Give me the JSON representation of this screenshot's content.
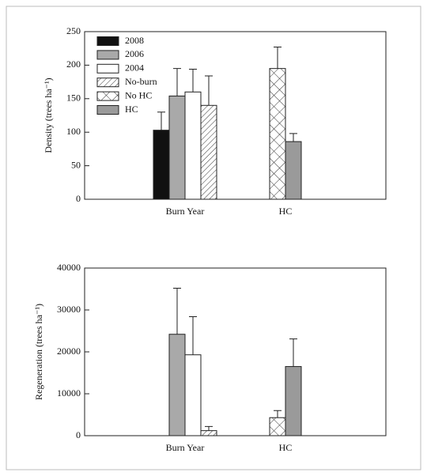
{
  "chart_data": [
    {
      "type": "bar",
      "ylabel": "Density (trees ha⁻¹)",
      "categories": [
        "Burn Year",
        "HC"
      ],
      "ylim": [
        0,
        250
      ],
      "yticks": [
        0,
        50,
        100,
        150,
        200,
        250
      ],
      "legend": "upper left",
      "series": [
        {
          "name": "2008",
          "color": "#111111",
          "values": [
            103,
            null
          ],
          "errors": [
            27,
            null
          ]
        },
        {
          "name": "2006",
          "color": "#a9a9a9",
          "values": [
            154,
            null
          ],
          "errors": [
            41,
            null
          ]
        },
        {
          "name": "2004",
          "color": "#ffffff",
          "values": [
            160,
            null
          ],
          "errors": [
            34,
            null
          ]
        },
        {
          "name": "No-burn",
          "color": "#ffffff",
          "pattern": "diagonal",
          "values": [
            140,
            null
          ],
          "errors": [
            44,
            null
          ]
        },
        {
          "name": "No HC",
          "color": "#ffffff",
          "pattern": "cross",
          "values": [
            null,
            195
          ],
          "errors": [
            null,
            32
          ]
        },
        {
          "name": "HC",
          "color": "#9a9a9a",
          "values": [
            null,
            86
          ],
          "errors": [
            null,
            12
          ]
        }
      ]
    },
    {
      "type": "bar",
      "ylabel": "Regeneration (trees ha⁻¹)",
      "categories": [
        "Burn Year",
        "HC"
      ],
      "ylim": [
        0,
        40000
      ],
      "yticks": [
        0,
        10000,
        20000,
        30000,
        40000
      ],
      "series": [
        {
          "color": "#111111",
          "values": [
            null,
            null
          ],
          "errors": [
            null,
            null
          ]
        },
        {
          "color": "#a9a9a9",
          "values": [
            24200,
            null
          ],
          "errors": [
            11000,
            null
          ]
        },
        {
          "color": "#ffffff",
          "values": [
            19300,
            null
          ],
          "errors": [
            9100,
            null
          ]
        },
        {
          "color": "#ffffff",
          "pattern": "diagonal",
          "values": [
            1200,
            null
          ],
          "errors": [
            1000,
            null
          ]
        },
        {
          "color": "#ffffff",
          "pattern": "cross",
          "values": [
            null,
            4300
          ],
          "errors": [
            null,
            1700
          ]
        },
        {
          "color": "#9a9a9a",
          "values": [
            null,
            16500
          ],
          "errors": [
            null,
            6600
          ]
        }
      ]
    }
  ]
}
